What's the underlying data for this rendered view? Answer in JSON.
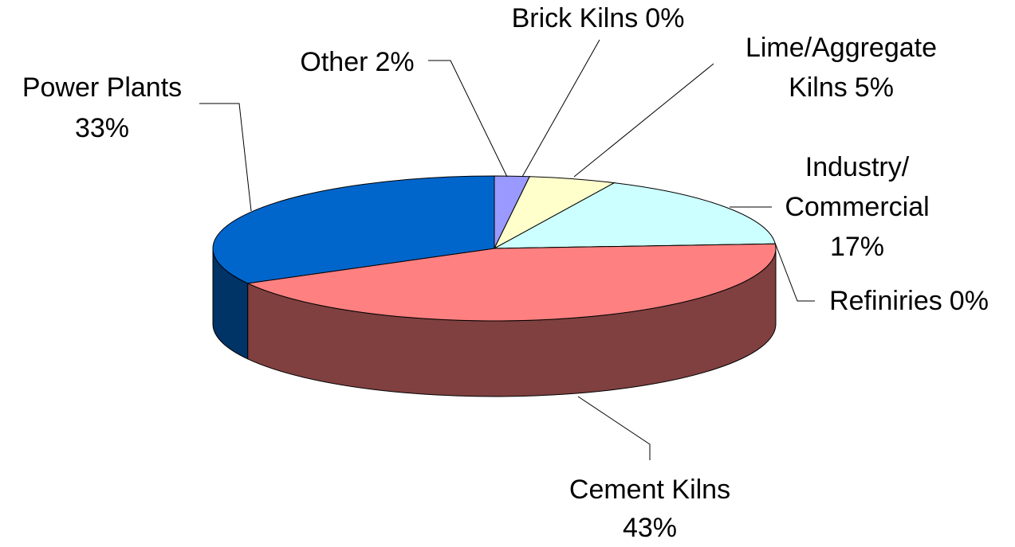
{
  "chart_data": {
    "type": "pie3d",
    "categories": [
      "Other",
      "Brick Kilns",
      "Lime/Aggregate Kilns",
      "Industry/Commercial",
      "Refiniries",
      "Cement Kilns",
      "Power Plants"
    ],
    "values": [
      2,
      0,
      5,
      17,
      0,
      43,
      33
    ],
    "value_labels": [
      "2%",
      "0%",
      "5%",
      "17%",
      "0%",
      "43%",
      "33%"
    ],
    "colors": [
      "#9999ff",
      "#993366",
      "#ffffcc",
      "#ccffff",
      "#660066",
      "#ff8080",
      "#0066cc"
    ]
  }
}
